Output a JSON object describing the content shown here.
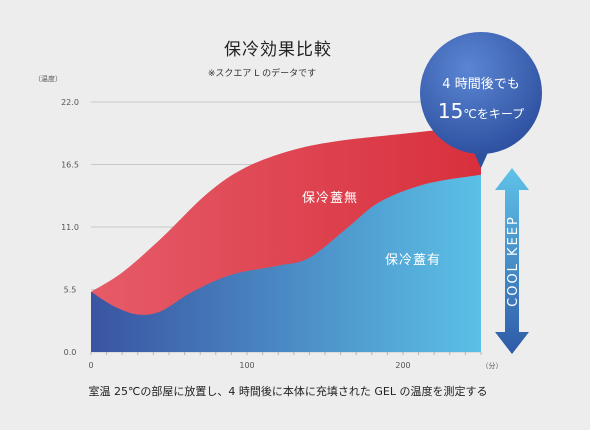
{
  "chart_data": {
    "type": "area",
    "title": "保冷効果比較",
    "subtitle": "※スクエア L のデータです",
    "ylabel": "（温度）",
    "xunit": "（分）",
    "ylim": [
      0,
      22
    ],
    "xlim": [
      0,
      250
    ],
    "y_ticks": [
      "0.0",
      "5.5",
      "11.0",
      "16.5",
      "22.0"
    ],
    "x_ticks": [
      "0",
      "100",
      "200"
    ],
    "grid": true,
    "series": [
      {
        "name": "保冷蓋無",
        "color": "#e04a55",
        "points": [
          [
            0,
            5.3
          ],
          [
            20,
            7
          ],
          [
            45,
            10
          ],
          [
            75,
            14
          ],
          [
            100,
            16.3
          ],
          [
            130,
            17.8
          ],
          [
            160,
            18.6
          ],
          [
            200,
            19.2
          ],
          [
            240,
            19.8
          ],
          [
            250,
            20
          ]
        ]
      },
      {
        "name": "保冷蓋有",
        "color": "#3f8fd4",
        "points": [
          [
            0,
            5.3
          ],
          [
            15,
            4
          ],
          [
            30,
            3.3
          ],
          [
            45,
            3.6
          ],
          [
            65,
            5.3
          ],
          [
            90,
            6.8
          ],
          [
            120,
            7.6
          ],
          [
            140,
            8.3
          ],
          [
            165,
            11
          ],
          [
            185,
            13.2
          ],
          [
            215,
            14.8
          ],
          [
            250,
            15.6
          ]
        ]
      }
    ],
    "badge": {
      "line1": "4 時間後でも",
      "line2_big": "15",
      "line2_rest": "℃をキープ"
    },
    "arrow_label": "COOL KEEP",
    "footnote": "室温 25℃の部屋に放置し、4 時間後に本体に充填された GEL の温度を測定する"
  }
}
